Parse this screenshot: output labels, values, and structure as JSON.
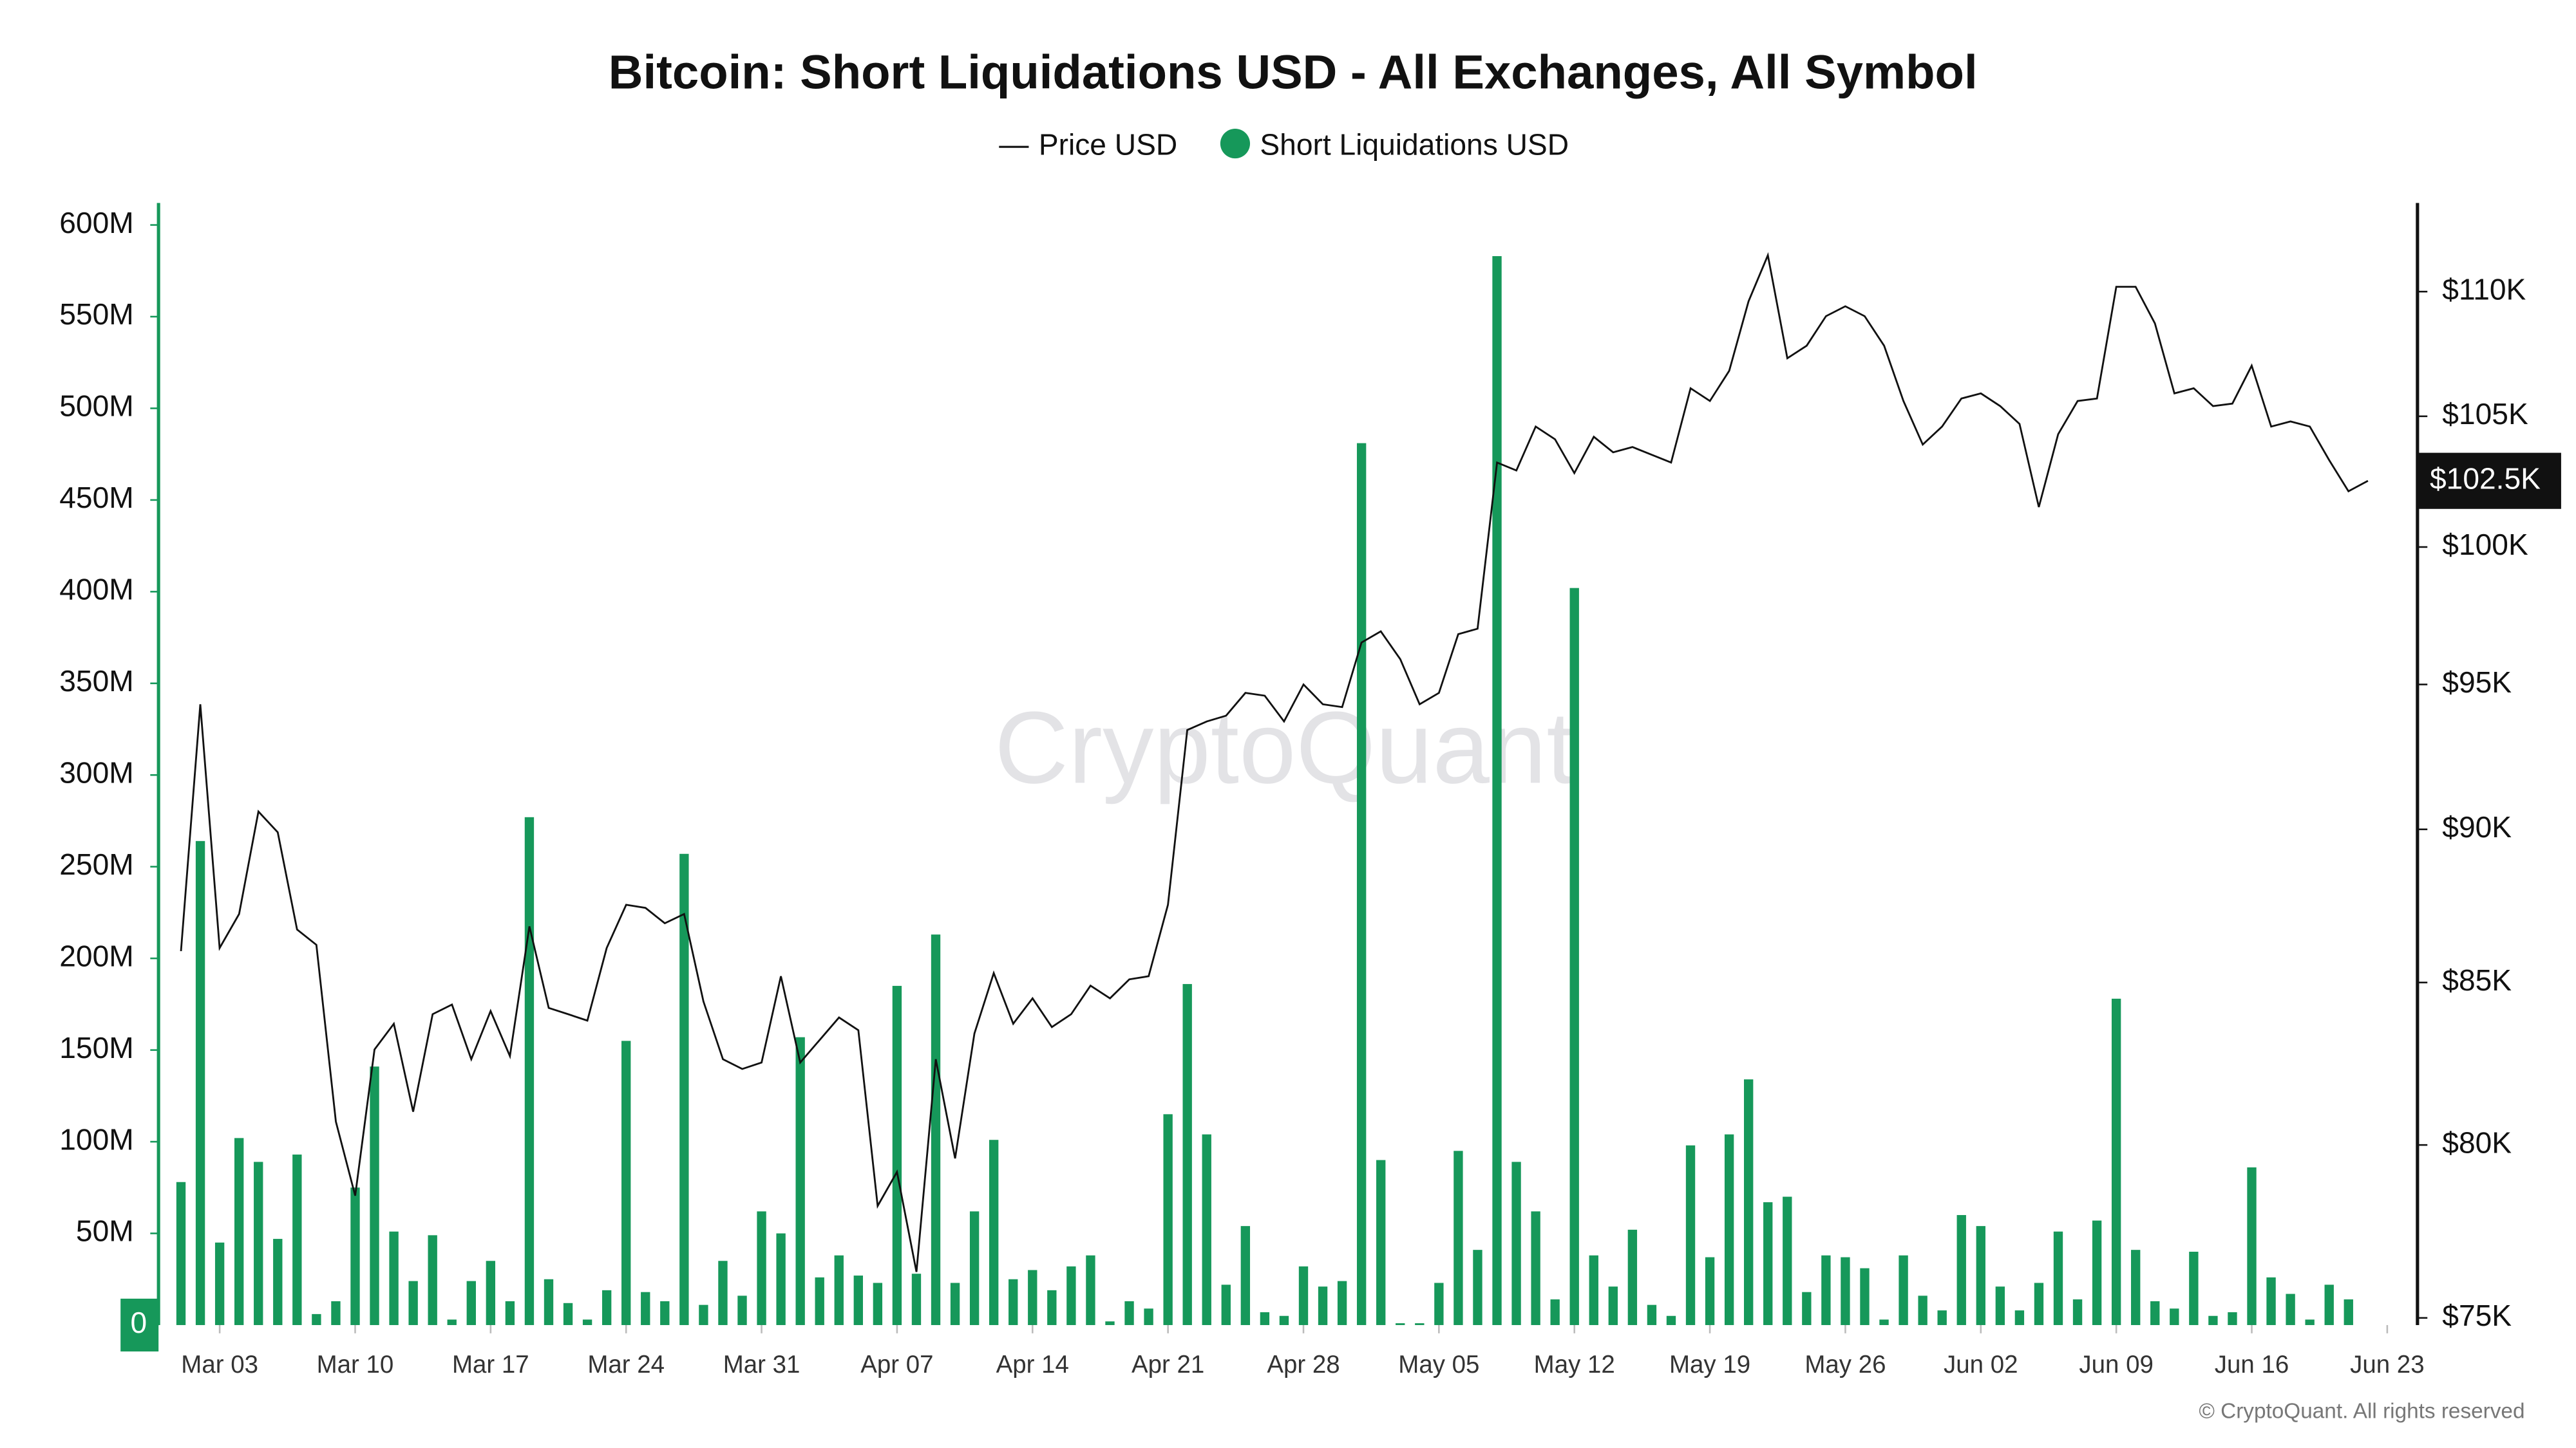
{
  "chart_data": {
    "type": "bar",
    "title": "Bitcoin: Short Liquidations USD - All Exchanges, All Symbol",
    "watermark": "CryptoQuant",
    "copyright": "© CryptoQuant. All rights reserved",
    "categories": [
      "Mar 01",
      "Mar 02",
      "Mar 03",
      "Mar 04",
      "Mar 05",
      "Mar 06",
      "Mar 07",
      "Mar 08",
      "Mar 09",
      "Mar 10",
      "Mar 11",
      "Mar 12",
      "Mar 13",
      "Mar 14",
      "Mar 15",
      "Mar 16",
      "Mar 17",
      "Mar 18",
      "Mar 19",
      "Mar 20",
      "Mar 21",
      "Mar 22",
      "Mar 23",
      "Mar 24",
      "Mar 25",
      "Mar 26",
      "Mar 27",
      "Mar 28",
      "Mar 29",
      "Mar 30",
      "Mar 31",
      "Apr 01",
      "Apr 02",
      "Apr 03",
      "Apr 04",
      "Apr 05",
      "Apr 06",
      "Apr 07",
      "Apr 08",
      "Apr 09",
      "Apr 10",
      "Apr 11",
      "Apr 12",
      "Apr 13",
      "Apr 14",
      "Apr 15",
      "Apr 16",
      "Apr 17",
      "Apr 18",
      "Apr 19",
      "Apr 20",
      "Apr 21",
      "Apr 22",
      "Apr 23",
      "Apr 24",
      "Apr 25",
      "Apr 26",
      "Apr 27",
      "Apr 28",
      "Apr 29",
      "Apr 30",
      "May 01",
      "May 02",
      "May 03",
      "May 04",
      "May 05",
      "May 06",
      "May 07",
      "May 08",
      "May 09",
      "May 10",
      "May 11",
      "May 12",
      "May 13",
      "May 14",
      "May 15",
      "May 16",
      "May 17",
      "May 18",
      "May 19",
      "May 20",
      "May 21",
      "May 22",
      "May 23",
      "May 24",
      "May 25",
      "May 26",
      "May 27",
      "May 28",
      "May 29",
      "May 30",
      "May 31",
      "Jun 01",
      "Jun 02",
      "Jun 03",
      "Jun 04",
      "Jun 05",
      "Jun 06",
      "Jun 07",
      "Jun 08",
      "Jun 09",
      "Jun 10",
      "Jun 11",
      "Jun 12",
      "Jun 13",
      "Jun 14",
      "Jun 15",
      "Jun 16",
      "Jun 17",
      "Jun 18",
      "Jun 19",
      "Jun 20",
      "Jun 21",
      "Jun 22",
      "Jun 23"
    ],
    "xticks": [
      "Mar 03",
      "Mar 10",
      "Mar 17",
      "Mar 24",
      "Mar 31",
      "Apr 07",
      "Apr 14",
      "Apr 21",
      "Apr 28",
      "May 05",
      "May 12",
      "May 19",
      "May 26",
      "Jun 02",
      "Jun 09",
      "Jun 16",
      "Jun 23"
    ],
    "series": [
      {
        "name": "Price USD",
        "type": "line",
        "axis": "y2",
        "color": "#111111",
        "values": [
          86000,
          94300,
          86100,
          87200,
          90600,
          89900,
          86700,
          86200,
          80700,
          78500,
          82900,
          83700,
          81000,
          84000,
          84300,
          82600,
          84100,
          82700,
          86800,
          84200,
          84000,
          83800,
          86100,
          87500,
          87400,
          86900,
          87200,
          84400,
          82600,
          82300,
          82500,
          85200,
          82500,
          83200,
          83900,
          83500,
          78200,
          79200,
          76300,
          82600,
          79600,
          83400,
          85300,
          83700,
          84500,
          83600,
          84000,
          84900,
          84500,
          85100,
          85200,
          87500,
          93400,
          93700,
          93900,
          94700,
          94600,
          93700,
          95000,
          94300,
          94200,
          96500,
          96900,
          95900,
          94300,
          94700,
          96800,
          97000,
          103200,
          102900,
          104600,
          104100,
          102800,
          104200,
          103600,
          103800,
          103500,
          103200,
          106100,
          105600,
          106800,
          109600,
          111500,
          107300,
          107800,
          109000,
          109400,
          109000,
          107800,
          105600,
          103900,
          104600,
          105700,
          105900,
          105400,
          104700,
          101500,
          104300,
          105600,
          105700,
          110200,
          110200,
          108700,
          105900,
          106100,
          105400,
          105500,
          107000,
          104600,
          104800,
          104600,
          103300,
          102100,
          102500,
          null
        ]
      },
      {
        "name": "Short Liquidations USD",
        "type": "bar",
        "color": "#16985a",
        "values": [
          78000000.0,
          264000000.0,
          45000000.0,
          102000000.0,
          89000000.0,
          47000000.0,
          93000000.0,
          6000000.0,
          13000000.0,
          75000000.0,
          141000000.0,
          51000000.0,
          24000000.0,
          49000000.0,
          3000000.0,
          24000000.0,
          35000000.0,
          13000000.0,
          277000000.0,
          25000000.0,
          12000000.0,
          3000000.0,
          19000000.0,
          155000000.0,
          18000000.0,
          13000000.0,
          257000000.0,
          11000000.0,
          35000000.0,
          16000000.0,
          62000000.0,
          50000000.0,
          157000000.0,
          26000000.0,
          38000000.0,
          27000000.0,
          23000000.0,
          185000000.0,
          28000000.0,
          213000000.0,
          23000000.0,
          62000000.0,
          101000000.0,
          25000000.0,
          30000000.0,
          19000000.0,
          32000000.0,
          38000000.0,
          2000000.0,
          13000000.0,
          9000000.0,
          115000000.0,
          186000000.0,
          104000000.0,
          22000000.0,
          54000000.0,
          7000000.0,
          5000000.0,
          32000000.0,
          21000000.0,
          24000000.0,
          481000000.0,
          90000000.0,
          1000000.0,
          1000000.0,
          23000000.0,
          95000000.0,
          41000000.0,
          583000000.0,
          89000000.0,
          62000000.0,
          14000000.0,
          402000000.0,
          38000000.0,
          21000000.0,
          52000000.0,
          11000000.0,
          5000000.0,
          98000000.0,
          37000000.0,
          104000000.0,
          134000000.0,
          67000000.0,
          70000000.0,
          18000000.0,
          38000000.0,
          37000000.0,
          31000000.0,
          3000000.0,
          38000000.0,
          16000000.0,
          8000000.0,
          60000000.0,
          54000000.0,
          21000000.0,
          8000000.0,
          23000000.0,
          51000000.0,
          14000000.0,
          57000000.0,
          178000000.0,
          41000000.0,
          13000000.0,
          9000000.0,
          40000000.0,
          5000000.0,
          7000000.0,
          86000000.0,
          26000000.0,
          17000000.0,
          3000000.0,
          22000000.0,
          14000000.0,
          null,
          null
        ]
      }
    ],
    "ylim": [
      0,
      612000000.0
    ],
    "yticks": [
      0,
      {
        "value": 50000000.0,
        "label": "50M"
      },
      {
        "value": 100000000.0,
        "label": "100M"
      },
      {
        "value": 150000000.0,
        "label": "150M"
      },
      {
        "value": 200000000.0,
        "label": "200M"
      },
      {
        "value": 250000000.0,
        "label": "250M"
      },
      {
        "value": 300000000.0,
        "label": "300M"
      },
      {
        "value": 350000000.0,
        "label": "350M"
      },
      {
        "value": 400000000.0,
        "label": "400M"
      },
      {
        "value": 450000000.0,
        "label": "450M"
      },
      {
        "value": 500000000.0,
        "label": "500M"
      },
      {
        "value": 550000000.0,
        "label": "550M"
      },
      {
        "value": 600000000.0,
        "label": "600M"
      }
    ],
    "y2lim": [
      74800,
      113700
    ],
    "y2log": true,
    "y2ticks": [
      {
        "value": 75000,
        "label": "$75K"
      },
      {
        "value": 80000,
        "label": "$80K"
      },
      {
        "value": 85000,
        "label": "$85K"
      },
      {
        "value": 90000,
        "label": "$90K"
      },
      {
        "value": 95000,
        "label": "$95K"
      },
      {
        "value": 100000,
        "label": "$100K"
      },
      {
        "value": 105000,
        "label": "$105K"
      },
      {
        "value": 110000,
        "label": "$110K"
      }
    ],
    "y2_marker": {
      "value": 102500,
      "label": "$102.5K"
    },
    "grid": false
  }
}
